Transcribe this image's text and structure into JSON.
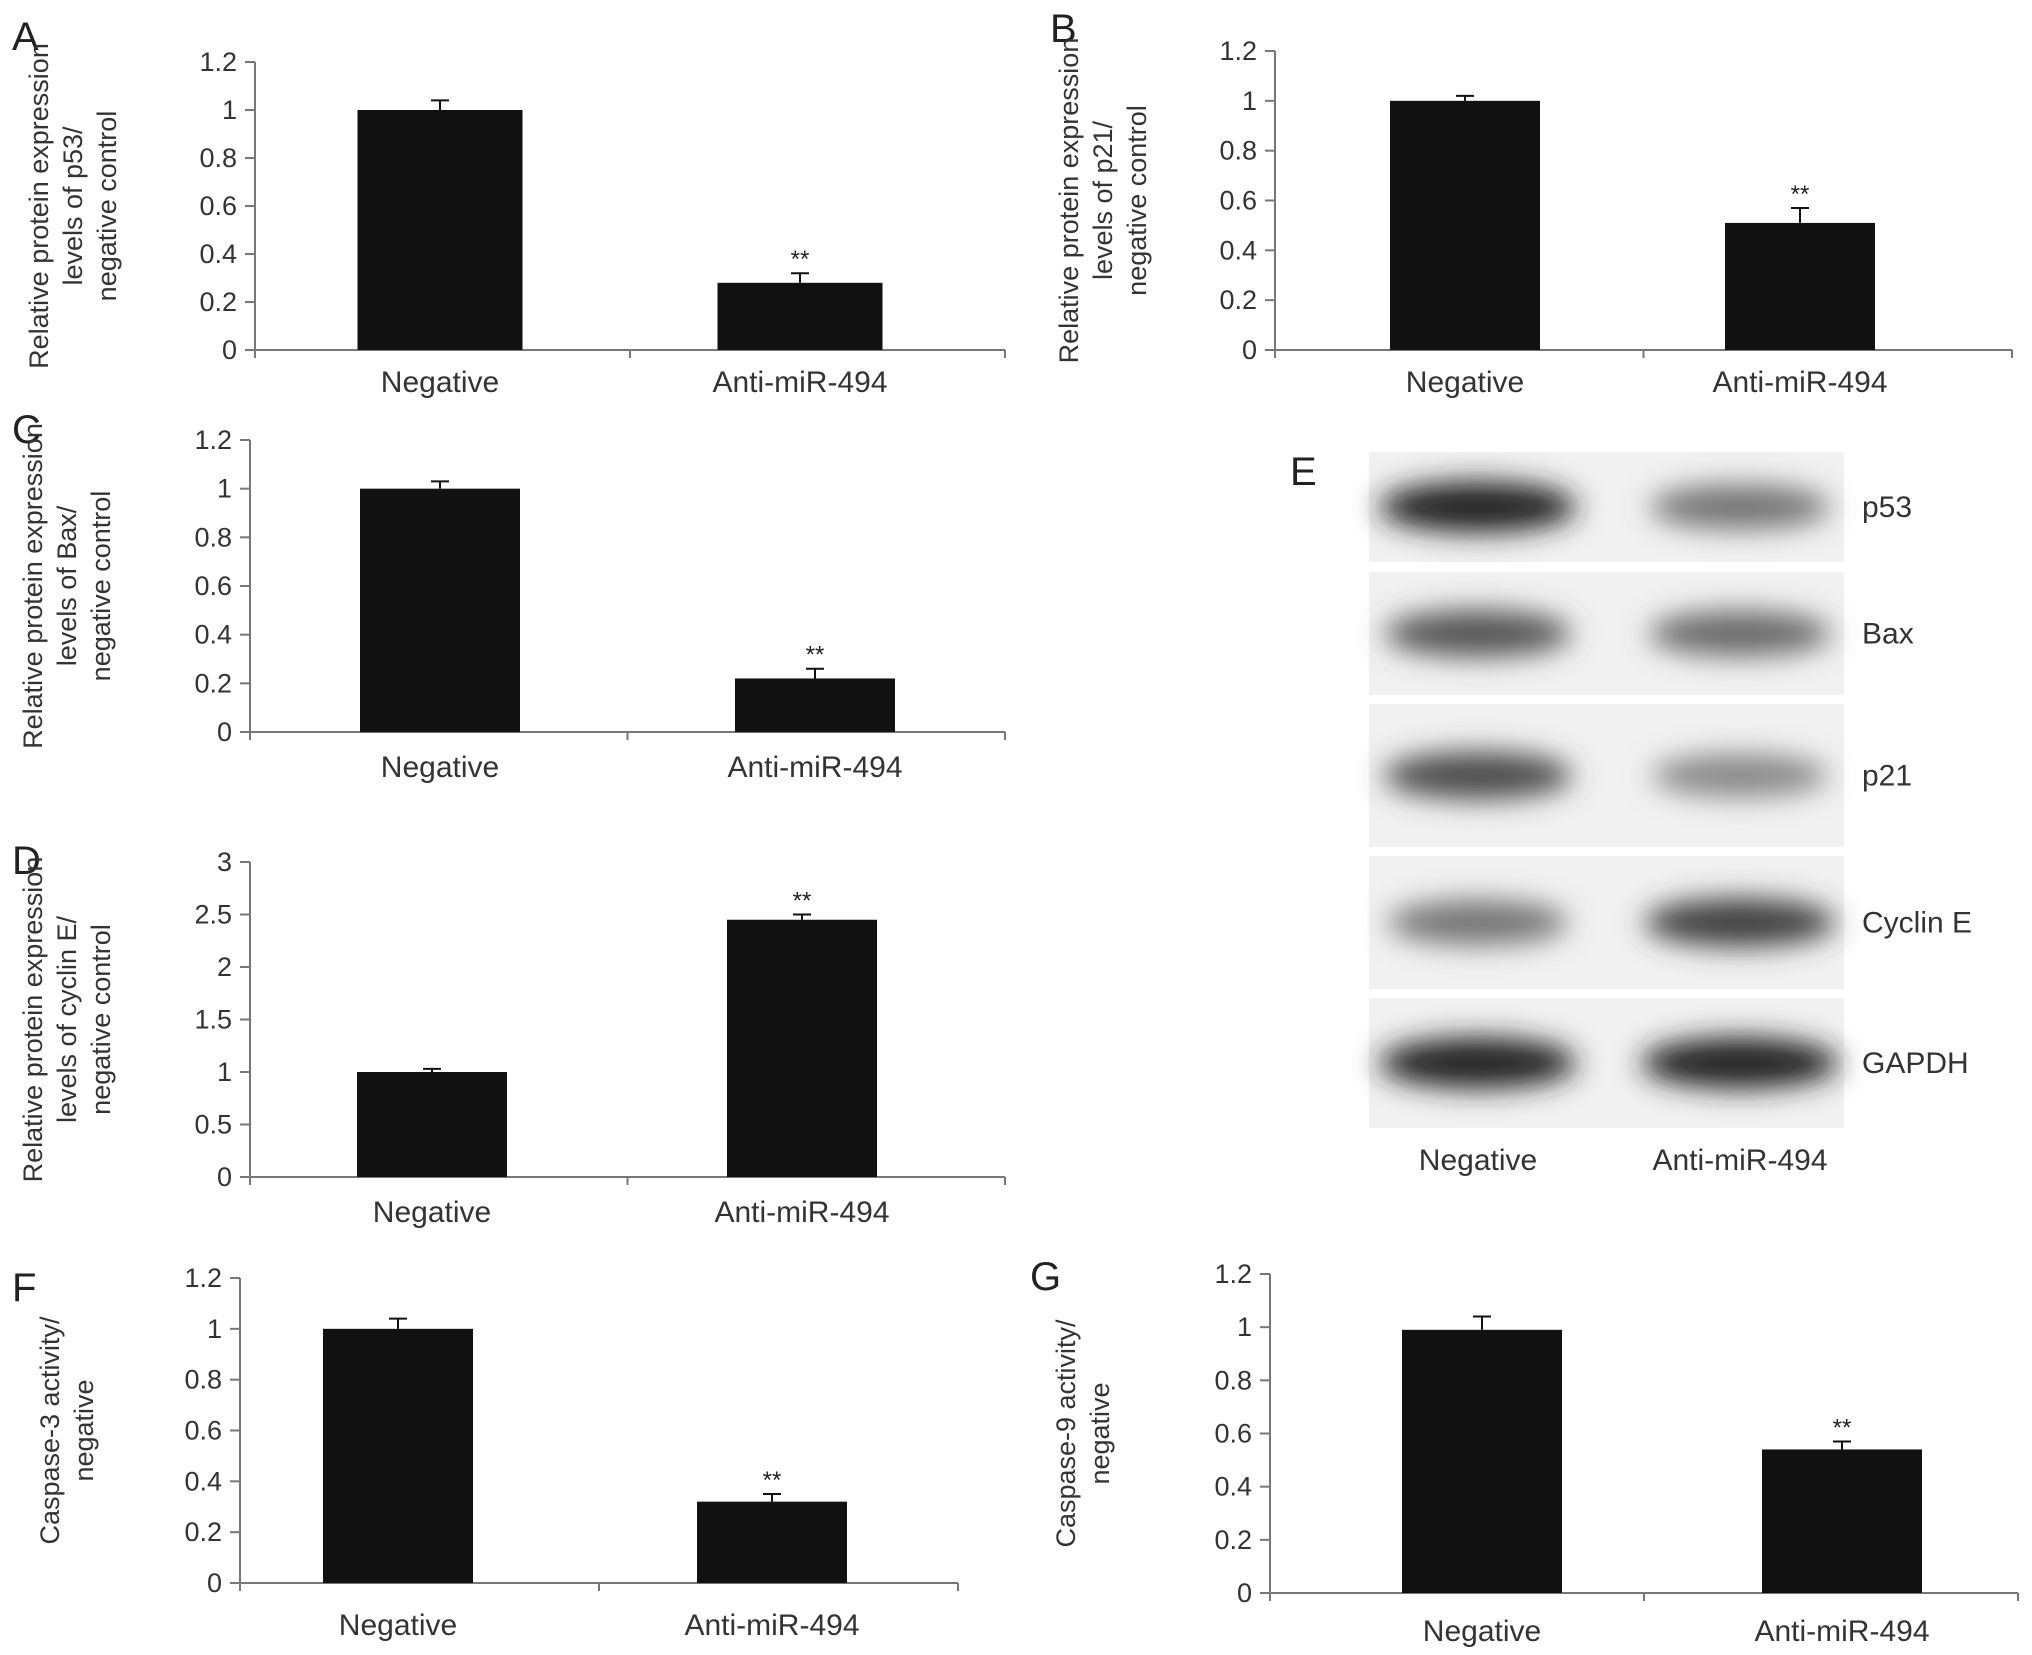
{
  "chart_data": [
    {
      "panel": "A",
      "type": "bar",
      "categories": [
        "Negative",
        "Anti-miR-494"
      ],
      "values": [
        1.0,
        0.28
      ],
      "errors": [
        0.04,
        0.04
      ],
      "significance": [
        "",
        "**"
      ],
      "ylabel_lines": [
        "Relative protein expression",
        "levels of p53/",
        "negative control"
      ],
      "xlabel": "",
      "ylim": [
        0,
        1.2
      ],
      "yticks": [
        "0",
        "0.2",
        "0.4",
        "0.6",
        "0.8",
        "1",
        "1.2"
      ]
    },
    {
      "panel": "B",
      "type": "bar",
      "categories": [
        "Negative",
        "Anti-miR-494"
      ],
      "values": [
        1.0,
        0.51
      ],
      "errors": [
        0.02,
        0.06
      ],
      "significance": [
        "",
        "**"
      ],
      "ylabel_lines": [
        "Relative protein expression",
        "levels of p21/",
        "negative control"
      ],
      "xlabel": "",
      "ylim": [
        0,
        1.2
      ],
      "yticks": [
        "0",
        "0.2",
        "0.4",
        "0.6",
        "0.8",
        "1",
        "1.2"
      ]
    },
    {
      "panel": "C",
      "type": "bar",
      "categories": [
        "Negative",
        "Anti-miR-494"
      ],
      "values": [
        1.0,
        0.22
      ],
      "errors": [
        0.03,
        0.04
      ],
      "significance": [
        "",
        "**"
      ],
      "ylabel_lines": [
        "Relative protein expression",
        "levels of Bax/",
        "negative control"
      ],
      "xlabel": "",
      "ylim": [
        0,
        1.2
      ],
      "yticks": [
        "0",
        "0.2",
        "0.4",
        "0.6",
        "0.8",
        "1",
        "1.2"
      ]
    },
    {
      "panel": "D",
      "type": "bar",
      "categories": [
        "Negative",
        "Anti-miR-494"
      ],
      "values": [
        1.0,
        2.45
      ],
      "errors": [
        0.03,
        0.05
      ],
      "significance": [
        "",
        "**"
      ],
      "ylabel_lines": [
        "Relative protein expression",
        "levels of cyclin E/",
        "negative control"
      ],
      "xlabel": "",
      "ylim": [
        0,
        3
      ],
      "yticks": [
        "0",
        "0.5",
        "1",
        "1.5",
        "2",
        "2.5",
        "3"
      ]
    },
    {
      "panel": "F",
      "type": "bar",
      "categories": [
        "Negative",
        "Anti-miR-494"
      ],
      "values": [
        1.0,
        0.32
      ],
      "errors": [
        0.04,
        0.03
      ],
      "significance": [
        "",
        "**"
      ],
      "ylabel_lines": [
        "Caspase-3 activity/",
        "negative"
      ],
      "xlabel": "",
      "ylim": [
        0,
        1.2
      ],
      "yticks": [
        "0",
        "0.2",
        "0.4",
        "0.6",
        "0.8",
        "1",
        "1.2"
      ]
    },
    {
      "panel": "G",
      "type": "bar",
      "categories": [
        "Negative",
        "Anti-miR-494"
      ],
      "values": [
        0.99,
        0.54
      ],
      "errors": [
        0.05,
        0.03
      ],
      "significance": [
        "",
        "**"
      ],
      "ylabel_lines": [
        "Caspase-9 activity/",
        "negative"
      ],
      "xlabel": "",
      "ylim": [
        0,
        1.2
      ],
      "yticks": [
        "0",
        "0.2",
        "0.4",
        "0.6",
        "0.8",
        "1",
        "1.2"
      ]
    }
  ],
  "western_blot": {
    "panel": "E",
    "lanes": [
      "Negative",
      "Anti-miR-494"
    ],
    "bands": [
      {
        "label": "p53",
        "intensity": [
          0.95,
          0.55
        ]
      },
      {
        "label": "Bax",
        "intensity": [
          0.7,
          0.6
        ]
      },
      {
        "label": "p21",
        "intensity": [
          0.75,
          0.45
        ]
      },
      {
        "label": "Cyclin E",
        "intensity": [
          0.55,
          0.8
        ]
      },
      {
        "label": "GAPDH",
        "intensity": [
          0.95,
          0.95
        ]
      }
    ]
  }
}
